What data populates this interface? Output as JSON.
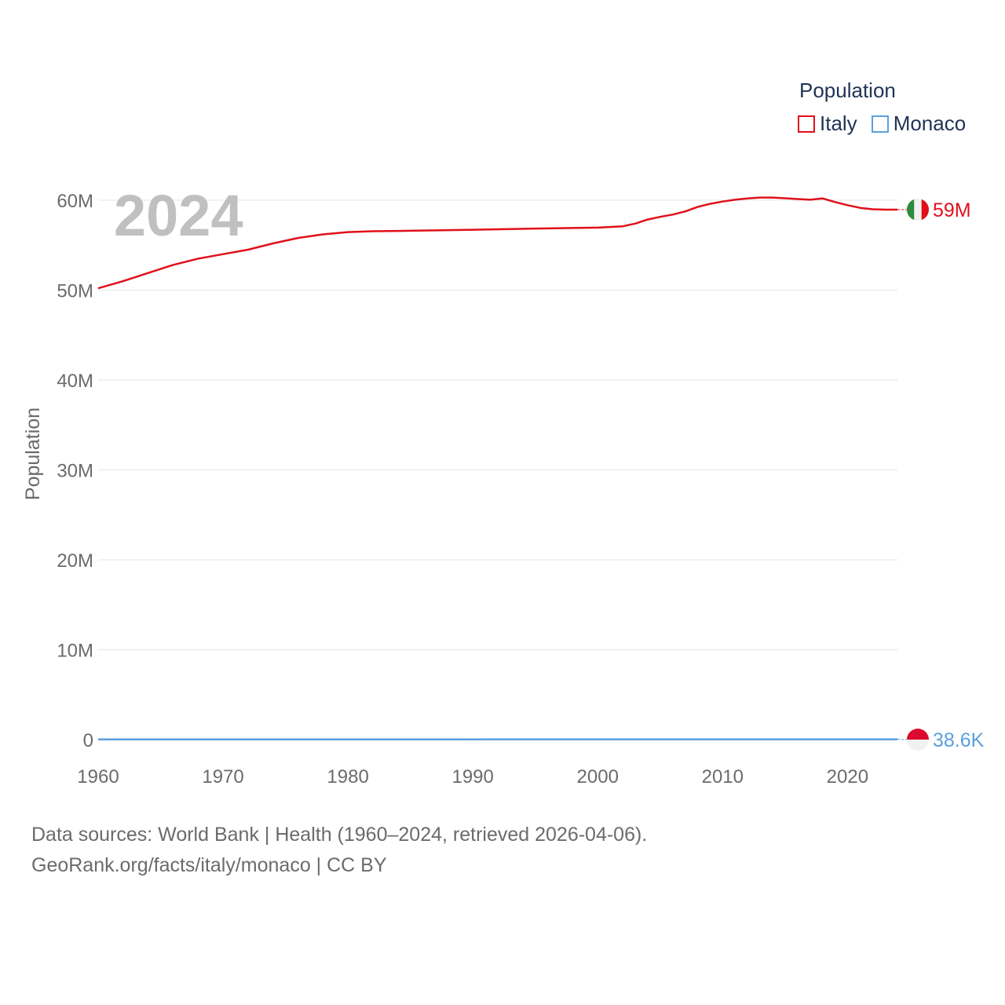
{
  "legend": {
    "title": "Population",
    "items": [
      {
        "name": "Italy",
        "color": "#e0101b"
      },
      {
        "name": "Monaco",
        "color": "#5aa0e0"
      }
    ]
  },
  "year_overlay": "2024",
  "footer": {
    "line1": "Data sources: World Bank | Health (1960–2024, retrieved 2026-04-06).",
    "line2": "GeoRank.org/facts/italy/monaco | CC BY"
  },
  "chart_data": {
    "type": "line",
    "title": "",
    "xlabel": "",
    "ylabel": "Population",
    "xlim": [
      1960,
      2024
    ],
    "ylim": [
      0,
      60000000
    ],
    "x_ticks": [
      1960,
      1970,
      1980,
      1990,
      2000,
      2010,
      2020
    ],
    "y_ticks": [
      {
        "value": 0,
        "label": "0"
      },
      {
        "value": 10000000,
        "label": "10M"
      },
      {
        "value": 20000000,
        "label": "20M"
      },
      {
        "value": 30000000,
        "label": "30M"
      },
      {
        "value": 40000000,
        "label": "40M"
      },
      {
        "value": 50000000,
        "label": "50M"
      },
      {
        "value": 60000000,
        "label": "60M"
      }
    ],
    "grid": true,
    "series": [
      {
        "name": "Italy",
        "color": "#e0101b",
        "end_label": "59M",
        "flag": "italy-flag",
        "x": [
          1960,
          1962,
          1964,
          1966,
          1968,
          1970,
          1972,
          1974,
          1976,
          1978,
          1980,
          1982,
          1985,
          1990,
          1995,
          2000,
          2002,
          2003,
          2004,
          2005,
          2006,
          2007,
          2008,
          2009,
          2010,
          2011,
          2012,
          2013,
          2014,
          2015,
          2016,
          2017,
          2018,
          2019,
          2020,
          2021,
          2022,
          2023,
          2024
        ],
        "values": [
          50200000,
          51000000,
          51900000,
          52800000,
          53500000,
          54000000,
          54500000,
          55200000,
          55800000,
          56200000,
          56450000,
          56550000,
          56600000,
          56720000,
          56850000,
          56950000,
          57100000,
          57400000,
          57850000,
          58150000,
          58400000,
          58750000,
          59250000,
          59600000,
          59850000,
          60050000,
          60200000,
          60300000,
          60300000,
          60220000,
          60130000,
          60050000,
          60200000,
          59800000,
          59450000,
          59150000,
          59000000,
          58950000,
          58950000
        ]
      },
      {
        "name": "Monaco",
        "color": "#5aa0e0",
        "end_label": "38.6K",
        "flag": "monaco-flag",
        "x": [
          1960,
          1970,
          1980,
          1990,
          2000,
          2010,
          2020,
          2024
        ],
        "values": [
          22400,
          24300,
          26900,
          29400,
          31700,
          35600,
          37800,
          38600
        ]
      }
    ]
  }
}
